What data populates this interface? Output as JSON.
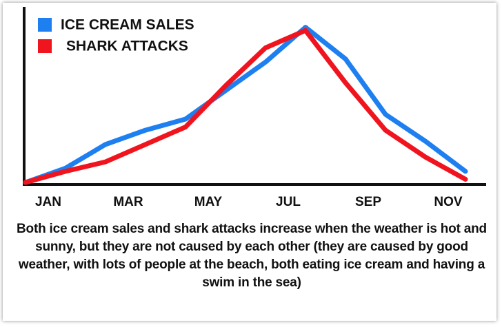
{
  "chart_data": {
    "type": "line",
    "categories": [
      "JAN",
      null,
      "MAR",
      null,
      "MAY",
      null,
      "JUL",
      null,
      "SEP",
      null,
      "NOV",
      null
    ],
    "series": [
      {
        "name": "ICE CREAM SALES",
        "color": "#1e80f0",
        "values": [
          0,
          9,
          24,
          33,
          40,
          58,
          76,
          98,
          78,
          43,
          26,
          7
        ]
      },
      {
        "name": "SHARK ATTACKS",
        "color": "#f0141e",
        "values": [
          0,
          7,
          13,
          24,
          35,
          61,
          85,
          96,
          63,
          33,
          16,
          2
        ]
      }
    ],
    "ylim": [
      0,
      100
    ],
    "note": "Both ice cream sales and shark attacks increase when the weather is hot and sunny, but they are not caused by each other (they are caused by good weather, with lots of people at the beach, both eating ice cream and having a swim in the sea)"
  }
}
